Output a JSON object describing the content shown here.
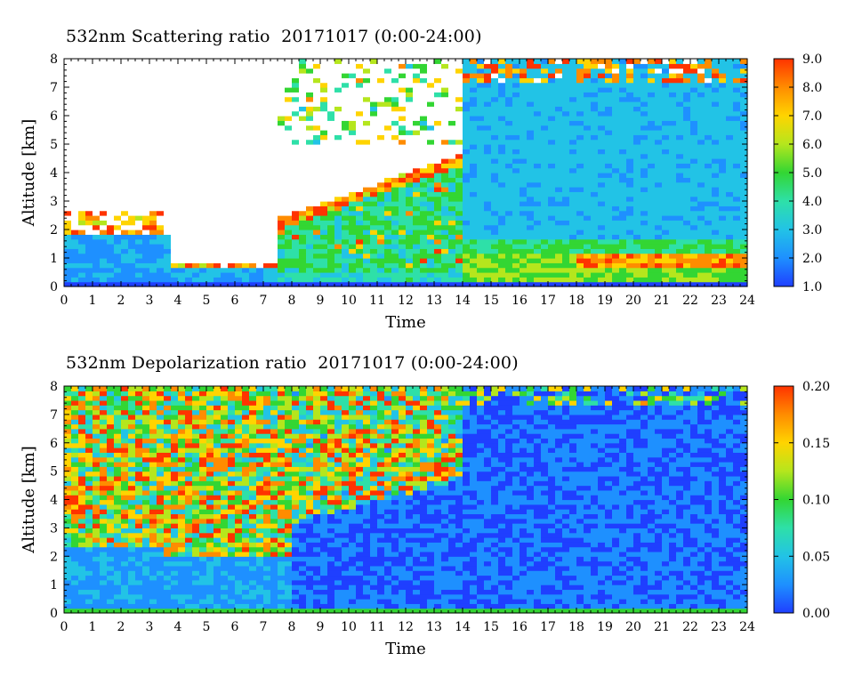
{
  "chart_data": [
    {
      "type": "heatmap",
      "title": "532nm Scattering ratio  20171017 (0:00-24:00)",
      "xlabel": "Time",
      "ylabel": "Altitude [km]",
      "xlim": [
        0,
        24
      ],
      "ylim": [
        0,
        8
      ],
      "xticks": [
        "0",
        "1",
        "2",
        "3",
        "4",
        "5",
        "6",
        "7",
        "8",
        "9",
        "10",
        "11",
        "12",
        "13",
        "14",
        "15",
        "16",
        "17",
        "18",
        "19",
        "20",
        "21",
        "22",
        "23",
        "24"
      ],
      "yticks": [
        "0",
        "1",
        "2",
        "3",
        "4",
        "5",
        "6",
        "7",
        "8"
      ],
      "colorbar": {
        "min": 1.0,
        "max": 9.0,
        "ticks": [
          "1.0",
          "2.0",
          "3.0",
          "4.0",
          "5.0",
          "6.0",
          "7.0",
          "8.0",
          "9.0"
        ]
      },
      "colors": [
        "#1f3fff",
        "#1e90ff",
        "#22c3e6",
        "#2ee0a8",
        "#33d633",
        "#b5e61d",
        "#ffd400",
        "#ff8c00",
        "#ff3300",
        "#ffffff"
      ]
    },
    {
      "type": "heatmap",
      "title": "532nm Depolarization ratio  20171017 (0:00-24:00)",
      "xlabel": "Time",
      "ylabel": "Altitude [km]",
      "xlim": [
        0,
        24
      ],
      "ylim": [
        0,
        8
      ],
      "xticks": [
        "0",
        "1",
        "2",
        "3",
        "4",
        "5",
        "6",
        "7",
        "8",
        "9",
        "10",
        "11",
        "12",
        "13",
        "14",
        "15",
        "16",
        "17",
        "18",
        "19",
        "20",
        "21",
        "22",
        "23",
        "24"
      ],
      "yticks": [
        "0",
        "1",
        "2",
        "3",
        "4",
        "5",
        "6",
        "7",
        "8"
      ],
      "colorbar": {
        "min": 0.0,
        "max": 0.2,
        "ticks": [
          "0.00",
          "0.05",
          "0.10",
          "0.15",
          "0.20"
        ]
      },
      "colors": [
        "#1f3fff",
        "#1e90ff",
        "#22c3e6",
        "#2ee0a8",
        "#33d633",
        "#b5e61d",
        "#ffd400",
        "#ff8c00",
        "#ff3300"
      ]
    }
  ]
}
